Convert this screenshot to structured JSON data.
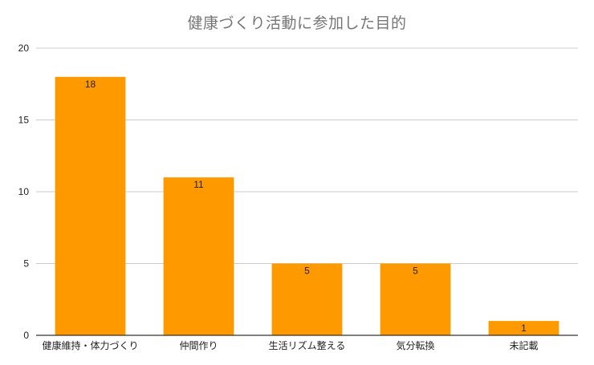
{
  "chart_data": {
    "type": "bar",
    "title": "健康づくり活動に参加した目的",
    "xlabel": "",
    "ylabel": "",
    "categories": [
      "健康維持・体力づくり",
      "仲間作り",
      "生活リズム整える",
      "気分転換",
      "未記載"
    ],
    "values": [
      18,
      11,
      5,
      5,
      1
    ],
    "ylim": [
      0,
      20
    ],
    "yticks": [
      0,
      5,
      10,
      15,
      20
    ],
    "grid": true,
    "legend": "none",
    "bar_color": "#FF9900",
    "grid_color": "#cccccc",
    "axis_color": "#333333"
  }
}
